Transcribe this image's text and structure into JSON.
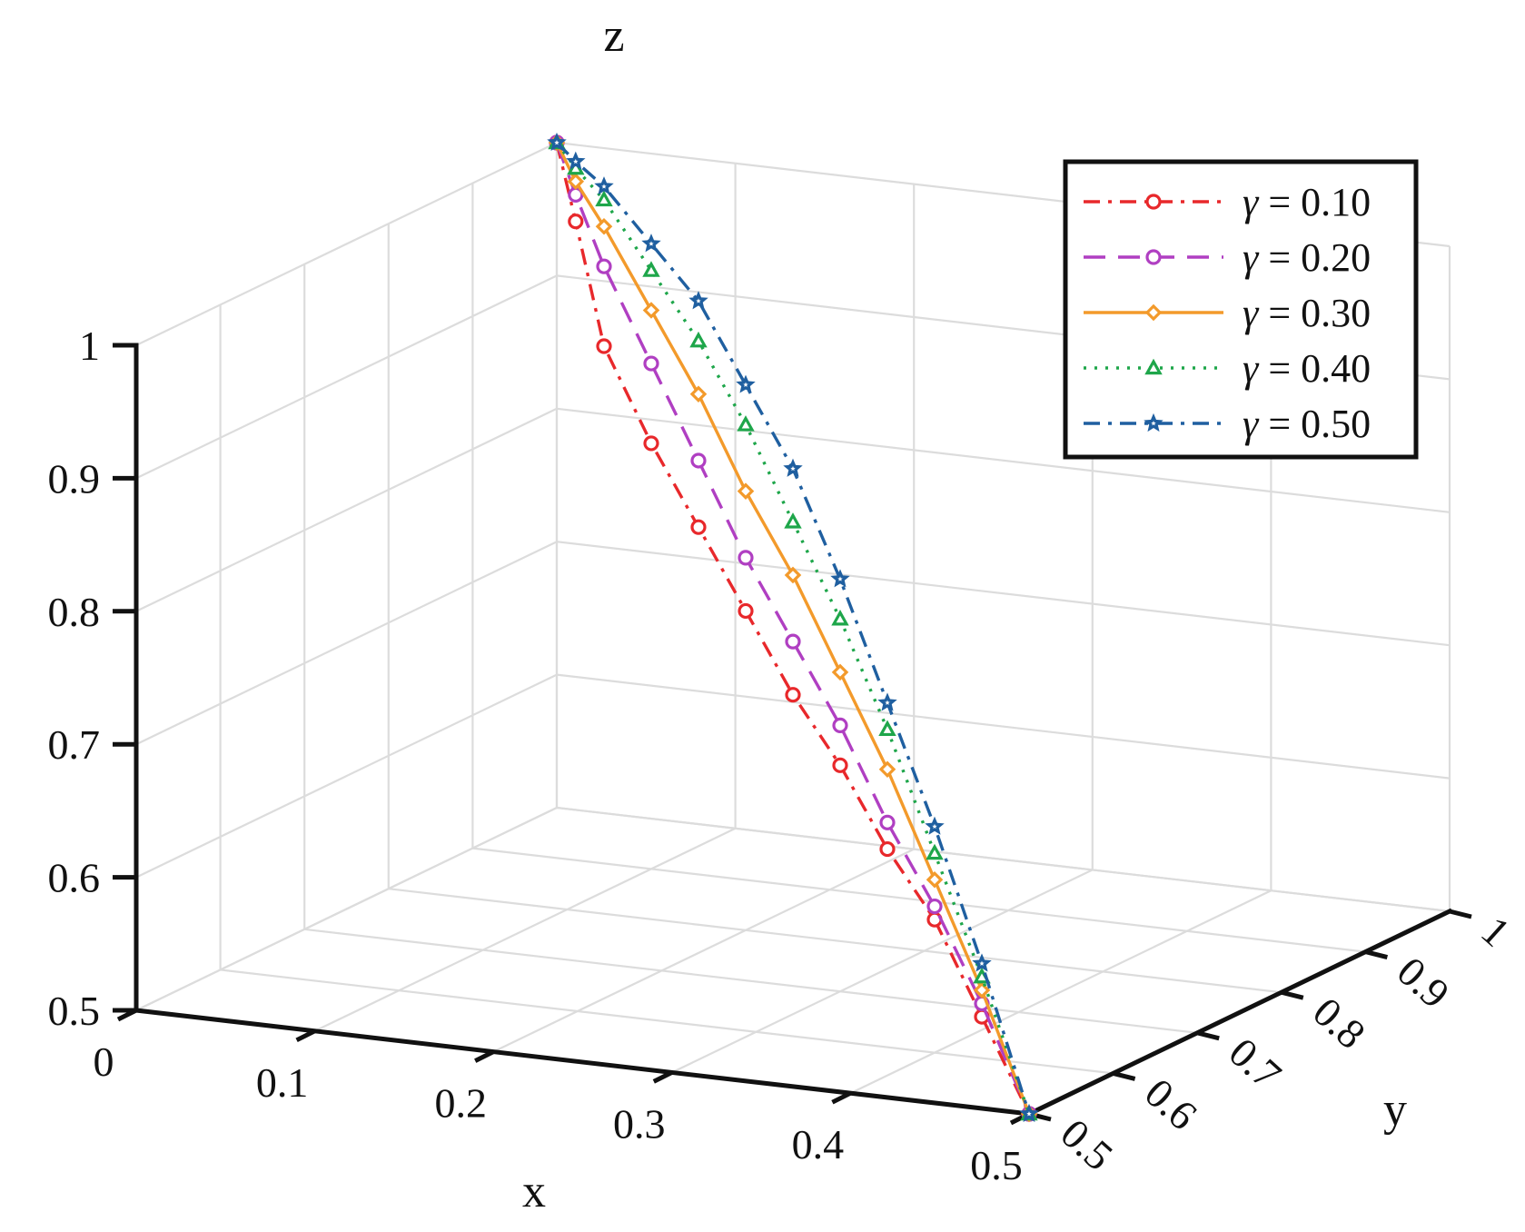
{
  "chart_data": {
    "type": "line3d",
    "xlabel": "x",
    "ylabel": "y",
    "zlabel": "z",
    "xlim": [
      0,
      0.5
    ],
    "ylim": [
      0.5,
      1
    ],
    "zlim": [
      0.5,
      1
    ],
    "x_ticks": [
      "0",
      "0.1",
      "0.2",
      "0.3",
      "0.4",
      "0.5"
    ],
    "y_ticks": [
      "0.5",
      "0.6",
      "0.7",
      "0.8",
      "0.9",
      "1"
    ],
    "z_ticks": [
      "0.5",
      "0.6",
      "0.7",
      "0.8",
      "0.9",
      "1"
    ],
    "grid": true,
    "legend_position": "top-right",
    "series": [
      {
        "name": "γ = 0.10",
        "symbol": "γ",
        "value_text": "= 0.10",
        "color": "#e8282b",
        "dash": "dashdot",
        "marker": "circle",
        "points": [
          [
            0,
            1,
            1
          ],
          [
            0.02,
            0.98,
            0.95
          ],
          [
            0.05,
            0.95,
            0.87
          ],
          [
            0.1,
            0.9,
            0.82
          ],
          [
            0.15,
            0.85,
            0.78
          ],
          [
            0.2,
            0.8,
            0.74
          ],
          [
            0.25,
            0.75,
            0.7
          ],
          [
            0.3,
            0.7,
            0.67
          ],
          [
            0.35,
            0.65,
            0.63
          ],
          [
            0.4,
            0.6,
            0.6
          ],
          [
            0.45,
            0.55,
            0.55
          ],
          [
            0.5,
            0.5,
            0.5
          ]
        ]
      },
      {
        "name": "γ = 0.20",
        "symbol": "γ",
        "value_text": "= 0.20",
        "color": "#b03fc2",
        "dash": "dashed",
        "marker": "circle",
        "points": [
          [
            0,
            1,
            1
          ],
          [
            0.02,
            0.98,
            0.97
          ],
          [
            0.05,
            0.95,
            0.93
          ],
          [
            0.1,
            0.9,
            0.88
          ],
          [
            0.15,
            0.85,
            0.83
          ],
          [
            0.2,
            0.8,
            0.78
          ],
          [
            0.25,
            0.75,
            0.74
          ],
          [
            0.3,
            0.7,
            0.7
          ],
          [
            0.35,
            0.65,
            0.65
          ],
          [
            0.4,
            0.6,
            0.61
          ],
          [
            0.45,
            0.55,
            0.56
          ],
          [
            0.5,
            0.5,
            0.5
          ]
        ]
      },
      {
        "name": "γ = 0.30",
        "symbol": "γ",
        "value_text": "= 0.30",
        "color": "#f39a2b",
        "dash": "solid",
        "marker": "diamond",
        "points": [
          [
            0,
            1,
            1
          ],
          [
            0.02,
            0.98,
            0.98
          ],
          [
            0.05,
            0.95,
            0.96
          ],
          [
            0.1,
            0.9,
            0.92
          ],
          [
            0.15,
            0.85,
            0.88
          ],
          [
            0.2,
            0.8,
            0.83
          ],
          [
            0.25,
            0.75,
            0.79
          ],
          [
            0.3,
            0.7,
            0.74
          ],
          [
            0.35,
            0.65,
            0.69
          ],
          [
            0.4,
            0.6,
            0.63
          ],
          [
            0.45,
            0.55,
            0.57
          ],
          [
            0.5,
            0.5,
            0.5
          ]
        ]
      },
      {
        "name": "γ = 0.40",
        "symbol": "γ",
        "value_text": "= 0.40",
        "color": "#1ea64a",
        "dash": "dotted",
        "marker": "triangle",
        "points": [
          [
            0,
            1,
            1
          ],
          [
            0.02,
            0.98,
            0.99
          ],
          [
            0.05,
            0.95,
            0.98
          ],
          [
            0.1,
            0.9,
            0.95
          ],
          [
            0.15,
            0.85,
            0.92
          ],
          [
            0.2,
            0.8,
            0.88
          ],
          [
            0.25,
            0.75,
            0.83
          ],
          [
            0.3,
            0.7,
            0.78
          ],
          [
            0.35,
            0.65,
            0.72
          ],
          [
            0.4,
            0.6,
            0.65
          ],
          [
            0.45,
            0.55,
            0.58
          ],
          [
            0.5,
            0.5,
            0.5
          ]
        ]
      },
      {
        "name": "γ = 0.50",
        "symbol": "γ",
        "value_text": "= 0.50",
        "color": "#1f5fa0",
        "dash": "dashdot",
        "marker": "star",
        "points": [
          [
            0,
            1,
            1
          ],
          [
            0.02,
            0.98,
            0.995
          ],
          [
            0.05,
            0.95,
            0.99
          ],
          [
            0.1,
            0.9,
            0.97
          ],
          [
            0.15,
            0.85,
            0.95
          ],
          [
            0.2,
            0.8,
            0.91
          ],
          [
            0.25,
            0.75,
            0.87
          ],
          [
            0.3,
            0.7,
            0.81
          ],
          [
            0.35,
            0.65,
            0.74
          ],
          [
            0.4,
            0.6,
            0.67
          ],
          [
            0.45,
            0.55,
            0.59
          ],
          [
            0.5,
            0.5,
            0.5
          ]
        ]
      }
    ]
  }
}
